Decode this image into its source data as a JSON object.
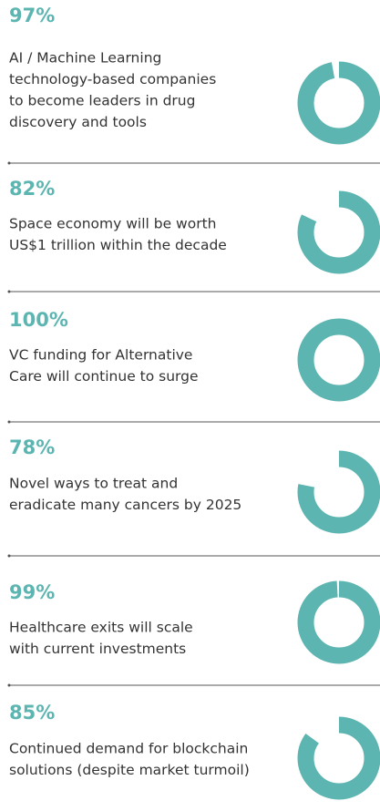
{
  "chart_data": [
    {
      "type": "donut",
      "values": [
        97
      ],
      "value_labels": [
        "97%"
      ],
      "color": "#5db5b1",
      "description": [
        "AI / Machine Learning",
        "technology-based companies",
        "to become leaders in drug",
        "discovery and tools"
      ]
    },
    {
      "type": "donut",
      "values": [
        82
      ],
      "value_labels": [
        "82%"
      ],
      "color": "#5db5b1",
      "description": [
        "Space economy will be worth",
        "US$1 trillion within the decade"
      ]
    },
    {
      "type": "donut",
      "values": [
        100
      ],
      "value_labels": [
        "100%"
      ],
      "color": "#5db5b1",
      "description": [
        "VC funding for Alternative",
        "Care will continue to surge"
      ]
    },
    {
      "type": "donut",
      "values": [
        78
      ],
      "value_labels": [
        "78%"
      ],
      "color": "#5db5b1",
      "description": [
        "Novel ways to treat and",
        "eradicate many cancers by 2025"
      ]
    },
    {
      "type": "donut",
      "values": [
        99
      ],
      "value_labels": [
        "99%"
      ],
      "color": "#5db5b1",
      "description": [
        "Healthcare exits will scale",
        "with current investments"
      ]
    },
    {
      "type": "donut",
      "values": [
        85
      ],
      "value_labels": [
        "85%"
      ],
      "color": "#5db5b1",
      "description": [
        "Continued demand for blockchain",
        "solutions (despite market turmoil)"
      ]
    }
  ]
}
